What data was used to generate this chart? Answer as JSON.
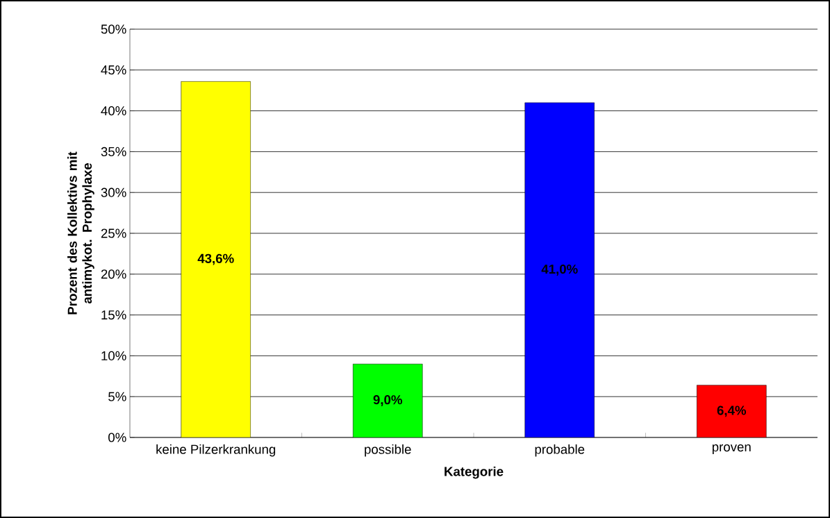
{
  "chart_data": {
    "type": "bar",
    "xlabel": "Kategorie",
    "ylabel": "Prozent des Kollektivs mit antimykot. Prophylaxe",
    "categories": [
      "keine Pilzerkrankung",
      "possible",
      "probable",
      "proven"
    ],
    "values": [
      43.6,
      9.0,
      41.0,
      6.4
    ],
    "colors": [
      "#ffff00",
      "#00ff00",
      "#0000ff",
      "#ff0000"
    ],
    "value_labels": [
      "43,6%",
      "9,0%",
      "41,0%",
      "6,4%"
    ],
    "ylim": [
      0,
      50
    ],
    "yticks": [
      {
        "value": 0,
        "label": "0%"
      },
      {
        "value": 5,
        "label": "5%"
      },
      {
        "value": 10,
        "label": "10%"
      },
      {
        "value": 15,
        "label": "15%"
      },
      {
        "value": 20,
        "label": "20%"
      },
      {
        "value": 25,
        "label": "25%"
      },
      {
        "value": 30,
        "label": "30%"
      },
      {
        "value": 35,
        "label": "35%"
      },
      {
        "value": 40,
        "label": "40%"
      },
      {
        "value": 45,
        "label": "45%"
      },
      {
        "value": 50,
        "label": "50%"
      }
    ],
    "grid": "y"
  }
}
